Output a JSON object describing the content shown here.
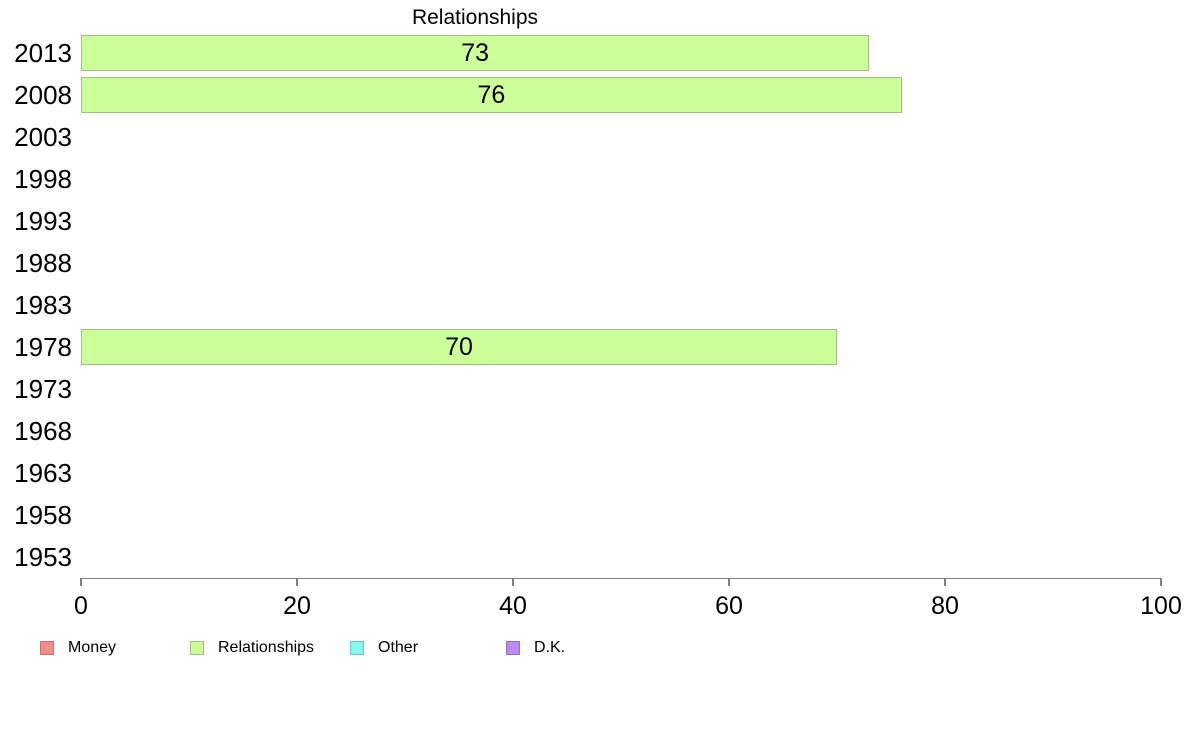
{
  "chart_data": {
    "type": "bar",
    "orientation": "horizontal",
    "title": "Relationships",
    "categories": [
      "2013",
      "2008",
      "2003",
      "1998",
      "1993",
      "1988",
      "1983",
      "1978",
      "1973",
      "1968",
      "1963",
      "1958",
      "1953"
    ],
    "values": [
      73,
      76,
      null,
      null,
      null,
      null,
      null,
      70,
      null,
      null,
      null,
      null,
      null
    ],
    "xlabel": "",
    "ylabel": "",
    "xlim": [
      0,
      100
    ],
    "x_ticks": [
      0,
      20,
      40,
      60,
      80,
      100
    ],
    "grid": false,
    "bar_color": "#ccff99",
    "bar_border_color": "#a6ba87",
    "axis_color": "#7f7f7f",
    "legend_position": "bottom",
    "legend": [
      {
        "label": "Money",
        "color": "#f58c8c",
        "border": "#c97272"
      },
      {
        "label": "Relationships",
        "color": "#ccff99",
        "border": "#a6ba87"
      },
      {
        "label": "Other",
        "color": "#8cf7f2",
        "border": "#6fc7c3"
      },
      {
        "label": "D.K.",
        "color": "#b68cf0",
        "border": "#9471c6"
      }
    ]
  }
}
